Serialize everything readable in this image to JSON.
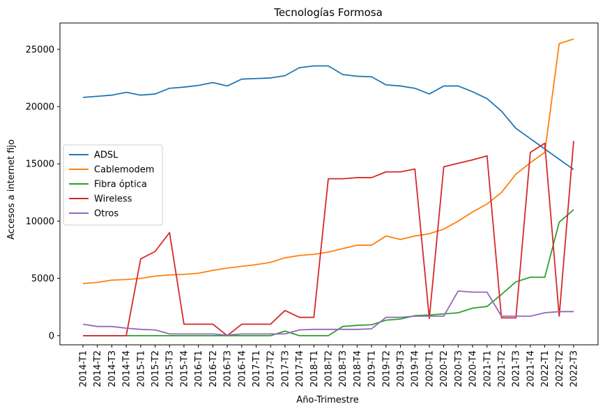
{
  "chart_data": {
    "type": "line",
    "title": "Tecnologías Formosa",
    "xlabel": "Año-Trimestre",
    "ylabel": "Accesos a internet fijo",
    "ylim": [
      -800,
      27300
    ],
    "yticks": [
      0,
      5000,
      10000,
      15000,
      20000,
      25000
    ],
    "legend_position": "center-left",
    "categories": [
      "2014-T1",
      "2014-T2",
      "2014-T3",
      "2014-T4",
      "2015-T1",
      "2015-T2",
      "2015-T3",
      "2015-T4",
      "2016-T1",
      "2016-T2",
      "2016-T3",
      "2016-T4",
      "2017-T1",
      "2017-T2",
      "2017-T3",
      "2017-T4",
      "2018-T1",
      "2018-T2",
      "2018-T3",
      "2018-T4",
      "2019-T1",
      "2019-T2",
      "2019-T3",
      "2019-T4",
      "2020-T1",
      "2020-T2",
      "2020-T3",
      "2020-T4",
      "2021-T1",
      "2021-T2",
      "2021-T3",
      "2021-T4",
      "2022-T1",
      "2022-T2",
      "2022-T3"
    ],
    "series": [
      {
        "name": "ADSL",
        "color": "#1f77b4",
        "values": [
          20800,
          20900,
          21000,
          21250,
          21000,
          21100,
          21600,
          21700,
          21850,
          22100,
          21800,
          22400,
          22450,
          22500,
          22700,
          23400,
          23550,
          23550,
          22800,
          22650,
          22600,
          21900,
          21800,
          21600,
          21100,
          21800,
          21800,
          21300,
          20700,
          19600,
          18100,
          17200,
          16300,
          15400,
          14500
        ]
      },
      {
        "name": "Cablemodem",
        "color": "#ff7f0e",
        "values": [
          4550,
          4650,
          4850,
          4900,
          5000,
          5200,
          5300,
          5350,
          5450,
          5700,
          5900,
          6050,
          6200,
          6400,
          6800,
          7000,
          7100,
          7300,
          7600,
          7900,
          7900,
          8700,
          8400,
          8700,
          8900,
          9300,
          10000,
          10800,
          11500,
          12500,
          14100,
          15100,
          16000,
          25500,
          25900
        ]
      },
      {
        "name": "Fibra óptica",
        "color": "#2ca02c",
        "values": [
          0,
          0,
          0,
          0,
          0,
          0,
          0,
          0,
          0,
          0,
          0,
          0,
          0,
          0,
          400,
          0,
          0,
          0,
          800,
          900,
          950,
          1350,
          1450,
          1750,
          1800,
          1900,
          2000,
          2400,
          2550,
          3600,
          4700,
          5100,
          5100,
          9900,
          11000
        ]
      },
      {
        "name": "Wireless",
        "color": "#d62728",
        "values": [
          0,
          0,
          0,
          0,
          6700,
          7350,
          9000,
          1000,
          1000,
          1000,
          0,
          1000,
          1000,
          1000,
          2200,
          1600,
          1600,
          13700,
          13700,
          13800,
          13800,
          14300,
          14300,
          14550,
          1500,
          14750,
          15050,
          15350,
          15700,
          1550,
          1550,
          16000,
          16800,
          1700,
          17000
        ]
      },
      {
        "name": "Otros",
        "color": "#9467bd",
        "values": [
          1000,
          800,
          800,
          650,
          550,
          500,
          150,
          150,
          150,
          150,
          50,
          150,
          150,
          150,
          150,
          500,
          550,
          550,
          550,
          550,
          600,
          1600,
          1600,
          1700,
          1700,
          1700,
          3900,
          3800,
          3800,
          1700,
          1700,
          1700,
          2000,
          2100,
          2100
        ]
      }
    ]
  }
}
